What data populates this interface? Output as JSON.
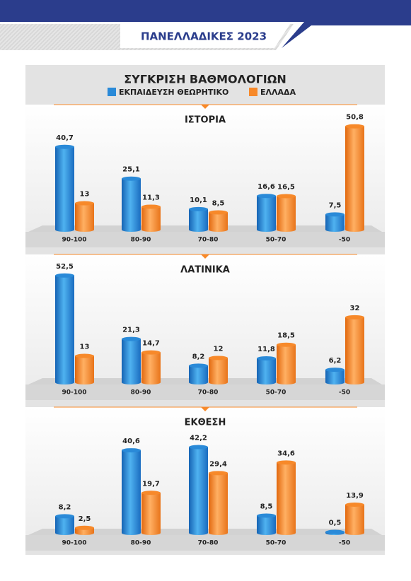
{
  "header": {
    "title": "ΠΑΝΕΛΛΑΔΙΚΕΣ 2023"
  },
  "title": "ΣΥΓΚΡΙΣΗ ΒΑΘΜΟΛΟΓΙΩΝ",
  "legend": [
    {
      "name": "ΕΚΠΑΙΔΕΥΣΗ ΘΕΩΡΗΤΙΚΟ",
      "color": "#2a8ad8"
    },
    {
      "name": "ΕΛΛΑΔΑ",
      "color": "#f7892a"
    }
  ],
  "chart_data": [
    {
      "type": "bar",
      "title": "ΙΣΤΟΡΙΑ",
      "categories": [
        "90-100",
        "80-90",
        "70-80",
        "50-70",
        "-50"
      ],
      "series": [
        {
          "values": [
            40.7,
            25.1,
            10.1,
            16.6,
            7.5
          ],
          "value_labels": [
            "40,7",
            "25,1",
            "10,1",
            "16,6",
            "7,5"
          ]
        },
        {
          "values": [
            13,
            11.3,
            8.5,
            16.5,
            50.8
          ],
          "value_labels": [
            "13",
            "11,3",
            "8,5",
            "16,5",
            "50,8"
          ]
        }
      ]
    },
    {
      "type": "bar",
      "title": "ΛΑΤΙΝΙΚΑ",
      "categories": [
        "90-100",
        "80-90",
        "70-80",
        "50-70",
        "-50"
      ],
      "series": [
        {
          "values": [
            52.5,
            21.3,
            8.2,
            11.8,
            6.2
          ],
          "value_labels": [
            "52,5",
            "21,3",
            "8,2",
            "11,8",
            "6,2"
          ]
        },
        {
          "values": [
            13,
            14.7,
            12,
            18.5,
            32
          ],
          "value_labels": [
            "13",
            "14,7",
            "12",
            "18,5",
            "32"
          ]
        }
      ]
    },
    {
      "type": "bar",
      "title": "ΕΚΘΕΣΗ",
      "categories": [
        "90-100",
        "80-90",
        "70-80",
        "50-70",
        "-50"
      ],
      "series": [
        {
          "values": [
            8.2,
            40.6,
            42.2,
            8.5,
            0.5
          ],
          "value_labels": [
            "8,2",
            "40,6",
            "42,2",
            "8,5",
            "0,5"
          ]
        },
        {
          "values": [
            2.5,
            19.7,
            29.4,
            34.6,
            13.9
          ],
          "value_labels": [
            "2,5",
            "19,7",
            "29,4",
            "34,6",
            "13,9"
          ]
        }
      ]
    }
  ]
}
